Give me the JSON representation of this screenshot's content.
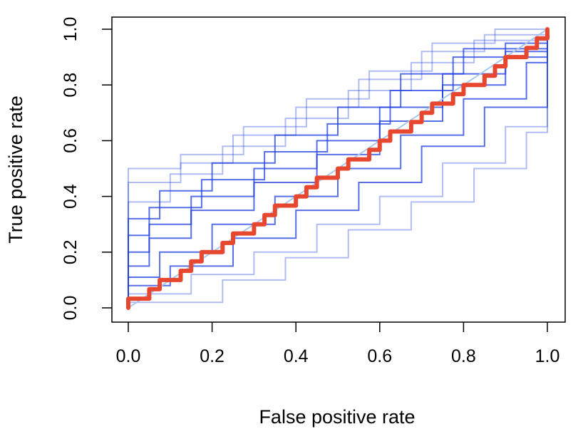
{
  "chart_data": {
    "type": "line",
    "title": "",
    "xlabel": "False positive rate",
    "ylabel": "True positive rate",
    "xlim": [
      0,
      1
    ],
    "ylim": [
      0,
      1
    ],
    "x_ticks": [
      "0.0",
      "0.2",
      "0.4",
      "0.6",
      "0.8",
      "1.0"
    ],
    "y_ticks": [
      "0.0",
      "0.2",
      "0.4",
      "0.6",
      "0.8",
      "1.0"
    ],
    "grid": false,
    "legend": "none",
    "colors": {
      "bootstrap_curves": "#1f3fe0",
      "average_curve": "#e8472f",
      "diagonal": "#a8c8ee"
    },
    "series": [
      {
        "role": "average-curve",
        "x": [
          0,
          0,
          0.05,
          0.05,
          0.075,
          0.075,
          0.125,
          0.125,
          0.15,
          0.15,
          0.175,
          0.175,
          0.225,
          0.225,
          0.25,
          0.25,
          0.3,
          0.3,
          0.325,
          0.325,
          0.35,
          0.35,
          0.4,
          0.4,
          0.425,
          0.425,
          0.45,
          0.45,
          0.5,
          0.5,
          0.525,
          0.525,
          0.575,
          0.575,
          0.6,
          0.6,
          0.625,
          0.625,
          0.675,
          0.675,
          0.7,
          0.7,
          0.725,
          0.725,
          0.775,
          0.775,
          0.8,
          0.8,
          0.85,
          0.85,
          0.875,
          0.875,
          0.9,
          0.9,
          0.95,
          0.95,
          0.975,
          0.975,
          1.0,
          1.0
        ],
        "y": [
          0,
          0.033,
          0.033,
          0.067,
          0.067,
          0.1,
          0.1,
          0.133,
          0.133,
          0.167,
          0.167,
          0.2,
          0.2,
          0.233,
          0.233,
          0.267,
          0.267,
          0.3,
          0.3,
          0.333,
          0.333,
          0.367,
          0.367,
          0.4,
          0.4,
          0.433,
          0.433,
          0.467,
          0.467,
          0.5,
          0.5,
          0.533,
          0.533,
          0.567,
          0.567,
          0.6,
          0.6,
          0.633,
          0.633,
          0.667,
          0.667,
          0.7,
          0.7,
          0.733,
          0.733,
          0.767,
          0.767,
          0.8,
          0.8,
          0.833,
          0.833,
          0.867,
          0.867,
          0.9,
          0.9,
          0.933,
          0.933,
          0.967,
          0.967,
          1.0
        ]
      },
      {
        "role": "bootstrap-curve",
        "x": [
          0,
          0,
          0.125,
          0.125,
          0.275,
          0.275,
          0.425,
          0.425,
          0.575,
          0.575,
          0.725,
          0.725,
          0.875,
          0.875,
          1.0,
          1.0
        ],
        "y": [
          0,
          0.5,
          0.5,
          0.55,
          0.55,
          0.65,
          0.65,
          0.75,
          0.75,
          0.85,
          0.85,
          0.95,
          0.95,
          1.0,
          1.0,
          1.0
        ]
      },
      {
        "role": "bootstrap-curve",
        "x": [
          0,
          0,
          0.125,
          0.125,
          0.25,
          0.25,
          0.4,
          0.4,
          0.55,
          0.55,
          0.7,
          0.7,
          0.85,
          0.85,
          1.0,
          1.0
        ],
        "y": [
          0,
          0.45,
          0.45,
          0.52,
          0.52,
          0.62,
          0.62,
          0.72,
          0.72,
          0.82,
          0.82,
          0.92,
          0.92,
          0.98,
          0.98,
          1.0
        ]
      },
      {
        "role": "bootstrap-curve",
        "x": [
          0,
          0,
          0.1,
          0.1,
          0.225,
          0.225,
          0.375,
          0.375,
          0.525,
          0.525,
          0.675,
          0.675,
          0.825,
          0.825,
          1.0,
          1.0
        ],
        "y": [
          0,
          0.38,
          0.38,
          0.48,
          0.48,
          0.58,
          0.58,
          0.68,
          0.68,
          0.78,
          0.78,
          0.88,
          0.88,
          0.96,
          0.96,
          1.0
        ]
      },
      {
        "role": "bootstrap-curve",
        "x": [
          0,
          0,
          0.075,
          0.075,
          0.2,
          0.2,
          0.35,
          0.35,
          0.5,
          0.5,
          0.65,
          0.65,
          0.8,
          0.8,
          1.0,
          1.0
        ],
        "y": [
          0,
          0.32,
          0.32,
          0.42,
          0.42,
          0.52,
          0.52,
          0.62,
          0.62,
          0.72,
          0.72,
          0.84,
          0.84,
          0.93,
          0.93,
          1.0
        ]
      },
      {
        "role": "bootstrap-curve",
        "x": [
          0,
          0,
          0.05,
          0.05,
          0.175,
          0.175,
          0.325,
          0.325,
          0.475,
          0.475,
          0.625,
          0.625,
          0.775,
          0.775,
          1.0,
          1.0
        ],
        "y": [
          0,
          0.26,
          0.26,
          0.36,
          0.36,
          0.46,
          0.46,
          0.56,
          0.56,
          0.66,
          0.66,
          0.78,
          0.78,
          0.9,
          0.9,
          1.0
        ]
      },
      {
        "role": "bootstrap-curve",
        "x": [
          0,
          0,
          0.05,
          0.05,
          0.15,
          0.15,
          0.3,
          0.3,
          0.45,
          0.45,
          0.6,
          0.6,
          0.75,
          0.75,
          0.9,
          0.9,
          1.0,
          1.0
        ],
        "y": [
          0,
          0.2,
          0.2,
          0.3,
          0.3,
          0.4,
          0.4,
          0.5,
          0.5,
          0.6,
          0.6,
          0.72,
          0.72,
          0.84,
          0.84,
          0.95,
          0.95,
          1.0
        ]
      },
      {
        "role": "bootstrap-curve",
        "x": [
          0,
          0,
          0.05,
          0.05,
          0.15,
          0.15,
          0.3,
          0.3,
          0.45,
          0.45,
          0.6,
          0.6,
          0.75,
          0.75,
          0.9,
          0.9,
          1.0,
          1.0
        ],
        "y": [
          0,
          0.15,
          0.15,
          0.25,
          0.25,
          0.35,
          0.35,
          0.45,
          0.45,
          0.55,
          0.55,
          0.67,
          0.67,
          0.8,
          0.8,
          0.92,
          0.92,
          1.0
        ]
      },
      {
        "role": "bootstrap-curve",
        "x": [
          0,
          0,
          0.075,
          0.075,
          0.2,
          0.2,
          0.35,
          0.35,
          0.5,
          0.5,
          0.65,
          0.65,
          0.8,
          0.8,
          0.95,
          0.95,
          1.0,
          1.0
        ],
        "y": [
          0,
          0.11,
          0.11,
          0.2,
          0.2,
          0.3,
          0.3,
          0.4,
          0.4,
          0.5,
          0.5,
          0.62,
          0.62,
          0.75,
          0.75,
          0.88,
          0.88,
          1.0
        ]
      },
      {
        "role": "bootstrap-curve",
        "x": [
          0,
          0,
          0.1,
          0.1,
          0.25,
          0.25,
          0.4,
          0.4,
          0.55,
          0.55,
          0.7,
          0.7,
          0.85,
          0.85,
          1.0,
          1.0
        ],
        "y": [
          0,
          0.08,
          0.08,
          0.15,
          0.15,
          0.25,
          0.25,
          0.35,
          0.35,
          0.45,
          0.45,
          0.58,
          0.58,
          0.72,
          0.72,
          1.0
        ]
      },
      {
        "role": "bootstrap-curve",
        "x": [
          0,
          0,
          0.15,
          0.15,
          0.3,
          0.3,
          0.45,
          0.45,
          0.6,
          0.6,
          0.75,
          0.75,
          0.9,
          0.9,
          1.0,
          1.0
        ],
        "y": [
          0,
          0.05,
          0.05,
          0.12,
          0.12,
          0.2,
          0.2,
          0.3,
          0.3,
          0.4,
          0.4,
          0.52,
          0.52,
          0.65,
          0.65,
          1.0
        ]
      },
      {
        "role": "bootstrap-curve",
        "x": [
          0,
          0,
          0.225,
          0.225,
          0.375,
          0.375,
          0.525,
          0.525,
          0.675,
          0.675,
          0.825,
          0.825,
          0.95,
          0.95,
          1.0,
          1.0
        ],
        "y": [
          0,
          0.02,
          0.02,
          0.1,
          0.1,
          0.18,
          0.18,
          0.28,
          0.28,
          0.38,
          0.38,
          0.5,
          0.5,
          0.63,
          0.63,
          1.0
        ]
      }
    ]
  }
}
